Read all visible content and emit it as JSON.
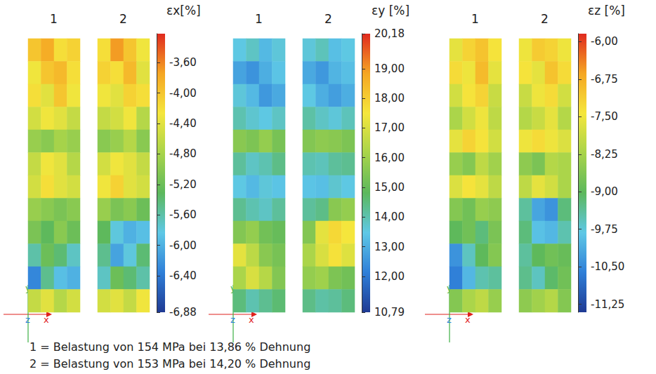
{
  "chart_data": [
    {
      "type": "heatmap",
      "title": "εx[%]",
      "axis_labels": [
        "x",
        "y",
        "z"
      ],
      "colors": [
        "#1f3a93",
        "#2f7fd8",
        "#5ec8e6",
        "#5cb85c",
        "#a8d44a",
        "#f5e63c",
        "#f5a623",
        "#e02a1f"
      ],
      "color_range": [
        -6.88,
        -3.22
      ],
      "color_ticks": [
        {
          "value": -3.6,
          "label": "-3,60"
        },
        {
          "value": -4.0,
          "label": "-4,00"
        },
        {
          "value": -4.4,
          "label": "-4,40"
        },
        {
          "value": -4.8,
          "label": "-4,80"
        },
        {
          "value": -5.2,
          "label": "-5,20"
        },
        {
          "value": -5.6,
          "label": "-5,60"
        },
        {
          "value": -6.0,
          "label": "-6,00"
        },
        {
          "value": -6.4,
          "label": "-6,40"
        },
        {
          "value": -6.88,
          "label": "-6,88"
        }
      ],
      "specimens": [
        {
          "name": "1",
          "cells": [
            [
              -4.0,
              -3.8,
              -4.2,
              -4.1
            ],
            [
              -4.3,
              -4.0,
              -3.9,
              -4.2
            ],
            [
              -4.2,
              -4.4,
              -4.0,
              -4.3
            ],
            [
              -4.5,
              -4.3,
              -4.4,
              -4.6
            ],
            [
              -4.9,
              -5.0,
              -4.8,
              -4.9
            ],
            [
              -4.6,
              -4.3,
              -4.4,
              -4.7
            ],
            [
              -4.5,
              -4.2,
              -4.4,
              -4.5
            ],
            [
              -4.9,
              -5.0,
              -5.1,
              -5.0
            ],
            [
              -5.1,
              -5.3,
              -5.0,
              -5.2
            ],
            [
              -5.6,
              -5.2,
              -5.4,
              -5.7
            ],
            [
              -6.3,
              -5.5,
              -5.9,
              -6.0
            ],
            [
              -4.6,
              -4.4,
              -4.7,
              -4.5
            ]
          ]
        },
        {
          "name": "2",
          "cells": [
            [
              -4.2,
              -3.7,
              -4.0,
              -4.3
            ],
            [
              -4.1,
              -4.2,
              -3.9,
              -4.4
            ],
            [
              -4.3,
              -4.4,
              -4.1,
              -4.2
            ],
            [
              -4.6,
              -4.5,
              -4.3,
              -4.7
            ],
            [
              -5.0,
              -4.9,
              -4.7,
              -5.0
            ],
            [
              -4.5,
              -4.3,
              -4.4,
              -4.6
            ],
            [
              -4.3,
              -4.1,
              -4.4,
              -4.5
            ],
            [
              -4.9,
              -5.1,
              -5.0,
              -5.2
            ],
            [
              -5.3,
              -5.8,
              -6.0,
              -5.9
            ],
            [
              -5.5,
              -6.1,
              -5.8,
              -5.4
            ],
            [
              -5.7,
              -5.2,
              -5.4,
              -5.6
            ],
            [
              -4.5,
              -4.4,
              -4.6,
              -4.3
            ]
          ]
        }
      ]
    },
    {
      "type": "heatmap",
      "title": "εy [%]",
      "axis_labels": [
        "x",
        "y",
        "z"
      ],
      "colors": [
        "#1f3a93",
        "#2f7fd8",
        "#5ec8e6",
        "#5cb85c",
        "#a8d44a",
        "#f5e63c",
        "#f5a623",
        "#e02a1f"
      ],
      "color_range": [
        10.79,
        20.18
      ],
      "color_ticks": [
        {
          "value": 20.18,
          "label": "20,18"
        },
        {
          "value": 19,
          "label": "19,00"
        },
        {
          "value": 18,
          "label": "18,00"
        },
        {
          "value": 17,
          "label": "17,00"
        },
        {
          "value": 16,
          "label": "16,00"
        },
        {
          "value": 15,
          "label": "15,00"
        },
        {
          "value": 14,
          "label": "14,00"
        },
        {
          "value": 13,
          "label": "13,00"
        },
        {
          "value": 12,
          "label": "12,00"
        },
        {
          "value": 10.79,
          "label": "10,79"
        }
      ],
      "specimens": [
        {
          "name": "1",
          "cells": [
            [
              13.5,
              13.8,
              13.2,
              13.6
            ],
            [
              12.8,
              12.5,
              13.0,
              13.4
            ],
            [
              13.6,
              13.2,
              12.6,
              12.9
            ],
            [
              14.0,
              13.7,
              13.5,
              13.8
            ],
            [
              15.6,
              15.4,
              15.8,
              15.3
            ],
            [
              14.2,
              13.8,
              14.0,
              14.4
            ],
            [
              13.5,
              13.2,
              13.6,
              13.4
            ],
            [
              14.3,
              14.0,
              13.8,
              14.2
            ],
            [
              15.5,
              15.8,
              15.2,
              15.0
            ],
            [
              17.2,
              16.5,
              15.6,
              15.3
            ],
            [
              16.2,
              17.0,
              16.4,
              15.5
            ],
            [
              14.5,
              14.0,
              14.3,
              14.6
            ]
          ]
        },
        {
          "name": "2",
          "cells": [
            [
              13.6,
              13.9,
              13.3,
              13.5
            ],
            [
              12.9,
              12.6,
              13.1,
              13.3
            ],
            [
              13.5,
              13.0,
              12.7,
              13.0
            ],
            [
              14.1,
              13.8,
              13.6,
              13.9
            ],
            [
              15.5,
              15.7,
              15.6,
              15.4
            ],
            [
              14.0,
              13.9,
              14.2,
              14.3
            ],
            [
              13.4,
              13.3,
              13.7,
              13.5
            ],
            [
              14.2,
              14.4,
              15.6,
              15.8
            ],
            [
              15.5,
              17.2,
              17.8,
              17.5
            ],
            [
              16.2,
              17.0,
              17.6,
              17.1
            ],
            [
              15.8,
              16.0,
              15.4,
              15.2
            ],
            [
              14.4,
              14.1,
              14.2,
              14.5
            ]
          ]
        }
      ]
    },
    {
      "type": "heatmap",
      "title": "εz [%]",
      "axis_labels": [
        "x",
        "y",
        "z"
      ],
      "colors": [
        "#1f3a93",
        "#2f7fd8",
        "#5ec8e6",
        "#5cb85c",
        "#a8d44a",
        "#f5e63c",
        "#f5a623",
        "#e02a1f"
      ],
      "color_range": [
        -11.41,
        -5.84
      ],
      "color_ticks": [
        {
          "value": -6.0,
          "label": "-6,00"
        },
        {
          "value": -6.75,
          "label": "-6,75"
        },
        {
          "value": -7.5,
          "label": "-7,50"
        },
        {
          "value": -8.25,
          "label": "-8,25"
        },
        {
          "value": -9.0,
          "label": "-9,00"
        },
        {
          "value": -9.75,
          "label": "-9,75"
        },
        {
          "value": -10.5,
          "label": "-10,50"
        },
        {
          "value": -11.25,
          "label": "-11,25"
        }
      ],
      "specimens": [
        {
          "name": "1",
          "cells": [
            [
              -7.6,
              -7.2,
              -7.0,
              -7.4
            ],
            [
              -7.3,
              -7.5,
              -6.9,
              -7.6
            ],
            [
              -7.8,
              -7.4,
              -7.2,
              -7.9
            ],
            [
              -8.2,
              -7.8,
              -7.5,
              -8.0
            ],
            [
              -7.6,
              -7.2,
              -7.4,
              -7.8
            ],
            [
              -8.4,
              -8.6,
              -8.0,
              -8.3
            ],
            [
              -7.7,
              -7.4,
              -7.6,
              -8.0
            ],
            [
              -8.6,
              -8.8,
              -8.4,
              -8.5
            ],
            [
              -9.0,
              -8.8,
              -9.2,
              -8.7
            ],
            [
              -10.4,
              -9.6,
              -9.0,
              -8.6
            ],
            [
              -10.6,
              -10.0,
              -9.5,
              -9.4
            ],
            [
              -8.6,
              -8.2,
              -8.0,
              -8.4
            ]
          ]
        },
        {
          "name": "2",
          "cells": [
            [
              -7.5,
              -7.1,
              -7.2,
              -7.5
            ],
            [
              -7.4,
              -7.6,
              -7.0,
              -7.3
            ],
            [
              -7.9,
              -7.5,
              -7.3,
              -7.8
            ],
            [
              -8.1,
              -7.9,
              -7.6,
              -8.1
            ],
            [
              -7.5,
              -7.3,
              -7.5,
              -7.7
            ],
            [
              -8.5,
              -8.7,
              -8.1,
              -8.2
            ],
            [
              -8.0,
              -7.6,
              -7.8,
              -8.2
            ],
            [
              -9.4,
              -10.2,
              -10.4,
              -9.2
            ],
            [
              -9.2,
              -9.9,
              -10.0,
              -9.5
            ],
            [
              -9.4,
              -9.0,
              -8.8,
              -8.9
            ],
            [
              -9.3,
              -9.6,
              -9.1,
              -8.8
            ],
            [
              -8.5,
              -8.3,
              -8.1,
              -8.6
            ]
          ]
        }
      ]
    }
  ],
  "caption": [
    "1 = Belastung von 154 MPa bei 13,86 % Dehnung",
    "2 = Belastung von 153 MPa bei 14,20 % Dehnung"
  ]
}
